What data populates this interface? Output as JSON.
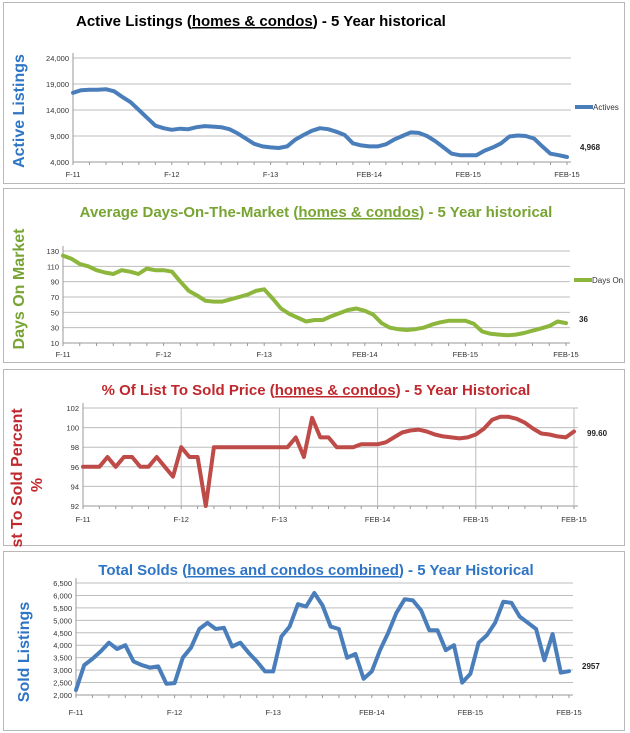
{
  "chart_data": [
    {
      "type": "line",
      "title": {
        "pre": "Active Listings (",
        "underlined": "homes & condos",
        "post": ") - 5 Year historical"
      },
      "ylabel": "Active Listings",
      "ylim": [
        4000,
        24000
      ],
      "yticks": [
        "4,000",
        "9,000",
        "14,000",
        "19,000",
        "24,000"
      ],
      "ytick_values": [
        4000,
        9000,
        14000,
        19000,
        24000
      ],
      "xtick_labels": [
        "F-11",
        "F-12",
        "F-13",
        "FEB-14",
        "FEB-15",
        "FEB-15"
      ],
      "grid": "horizontal",
      "legend": {
        "name": "Actives",
        "placement": "right"
      },
      "end_label": "4,968",
      "color": "#4a7ebb",
      "title_color": "#000000",
      "label_color": "#2e75c6",
      "values": [
        17300,
        17800,
        17900,
        17900,
        18000,
        17600,
        16500,
        15500,
        14000,
        12500,
        11000,
        10500,
        10200,
        10400,
        10300,
        10700,
        10900,
        10800,
        10700,
        10300,
        9500,
        8500,
        7500,
        7000,
        6800,
        6700,
        7000,
        8300,
        9200,
        10000,
        10500,
        10300,
        9800,
        9200,
        7600,
        7200,
        7000,
        7000,
        7400,
        8300,
        9000,
        9700,
        9600,
        9000,
        8000,
        6800,
        5600,
        5300,
        5300,
        5300,
        6200,
        6800,
        7600,
        8900,
        9100,
        9000,
        8500,
        7000,
        5600,
        5300,
        4968
      ]
    },
    {
      "type": "line",
      "title": {
        "pre": "Average Days-On-The-Market (",
        "underlined": "homes & condos",
        "post": ") - 5 Year historical"
      },
      "ylabel": "Days On Market",
      "ylim": [
        10,
        130
      ],
      "yticks": [
        "10",
        "30",
        "50",
        "70",
        "90",
        "110",
        "130"
      ],
      "ytick_values": [
        10,
        30,
        50,
        70,
        90,
        110,
        130
      ],
      "xtick_labels": [
        "F-11",
        "F-12",
        "F-13",
        "FEB-14",
        "FEB-15",
        "FEB-15"
      ],
      "grid": "horizontal",
      "legend": {
        "name": "Days On",
        "placement": "right"
      },
      "end_label": "36",
      "color": "#8db63c",
      "title_color": "#77a433",
      "label_color": "#77a433",
      "values": [
        124,
        120,
        113,
        110,
        105,
        102,
        100,
        105,
        103,
        100,
        107,
        105,
        105,
        103,
        90,
        78,
        72,
        65,
        64,
        64,
        67,
        70,
        73,
        78,
        80,
        68,
        55,
        48,
        43,
        38,
        40,
        40,
        45,
        49,
        53,
        55,
        52,
        47,
        36,
        30,
        28,
        27,
        28,
        30,
        34,
        37,
        39,
        39,
        39,
        35,
        25,
        22,
        21,
        20,
        21,
        23,
        26,
        29,
        32,
        38,
        36
      ]
    },
    {
      "type": "line",
      "title": {
        "pre": "% Of List To Sold Price (",
        "underlined": "homes & condos",
        "post": ") - 5 Year Historical"
      },
      "ylabel": "List To Sold Percent %",
      "ylabel_lines": [
        "List To Sold Percent",
        "%"
      ],
      "ylim": [
        92,
        102
      ],
      "yticks": [
        "92",
        "94",
        "96",
        "98",
        "100",
        "102"
      ],
      "ytick_values": [
        92,
        94,
        96,
        98,
        100,
        102
      ],
      "xtick_labels": [
        "F-11",
        "F-12",
        "F-13",
        "FEB-14",
        "FEB-15",
        "FEB-15"
      ],
      "grid": "both",
      "end_label": "99.60",
      "color": "#be4b48",
      "title_color": "#c0282d",
      "label_color": "#c0282d",
      "values": [
        96,
        96,
        96,
        97,
        96,
        97,
        97,
        96,
        96,
        97,
        96,
        95,
        98,
        97,
        97,
        92,
        98,
        98,
        98,
        98,
        98,
        98,
        98,
        98,
        98,
        98,
        99,
        97,
        101,
        99,
        99,
        98,
        98,
        98,
        98.3,
        98.3,
        98.3,
        98.5,
        99,
        99.5,
        99.7,
        99.8,
        99.6,
        99.3,
        99.1,
        99,
        98.9,
        99,
        99.3,
        99.9,
        100.8,
        101.1,
        101.1,
        100.9,
        100.5,
        99.9,
        99.4,
        99.3,
        99.1,
        99,
        99.6
      ]
    },
    {
      "type": "line",
      "title": {
        "pre": "Total Solds (",
        "underlined": "homes and condos combined",
        "post": ") - 5 Year Historical"
      },
      "ylabel": "Sold Listings",
      "ylim": [
        2000,
        6500
      ],
      "yticks": [
        "2,000",
        "2,500",
        "3,000",
        "3,500",
        "4,000",
        "4,500",
        "5,000",
        "5,500",
        "6,000",
        "6,500"
      ],
      "ytick_values": [
        2000,
        2500,
        3000,
        3500,
        4000,
        4500,
        5000,
        5500,
        6000,
        6500
      ],
      "xtick_labels": [
        "F-11",
        "F-12",
        "F-13",
        "FEB-14",
        "FEB-15",
        "FEB-15"
      ],
      "grid": "horizontal",
      "end_label": "2957",
      "color": "#4a7ebb",
      "title_color": "#2e75c6",
      "label_color": "#2e75c6",
      "values": [
        2200,
        3200,
        3450,
        3750,
        4100,
        3850,
        4000,
        3350,
        3200,
        3100,
        3150,
        2450,
        2480,
        3500,
        3900,
        4650,
        4900,
        4650,
        4700,
        3950,
        4100,
        3700,
        3350,
        2950,
        2950,
        4350,
        4750,
        5650,
        5550,
        6100,
        5600,
        4750,
        4650,
        3500,
        3650,
        2650,
        2950,
        3800,
        4500,
        5300,
        5850,
        5800,
        5400,
        4600,
        4600,
        3800,
        4000,
        2500,
        2850,
        4100,
        4400,
        4900,
        5750,
        5700,
        5150,
        4900,
        4650,
        3400,
        4450,
        2900,
        2957
      ]
    }
  ]
}
